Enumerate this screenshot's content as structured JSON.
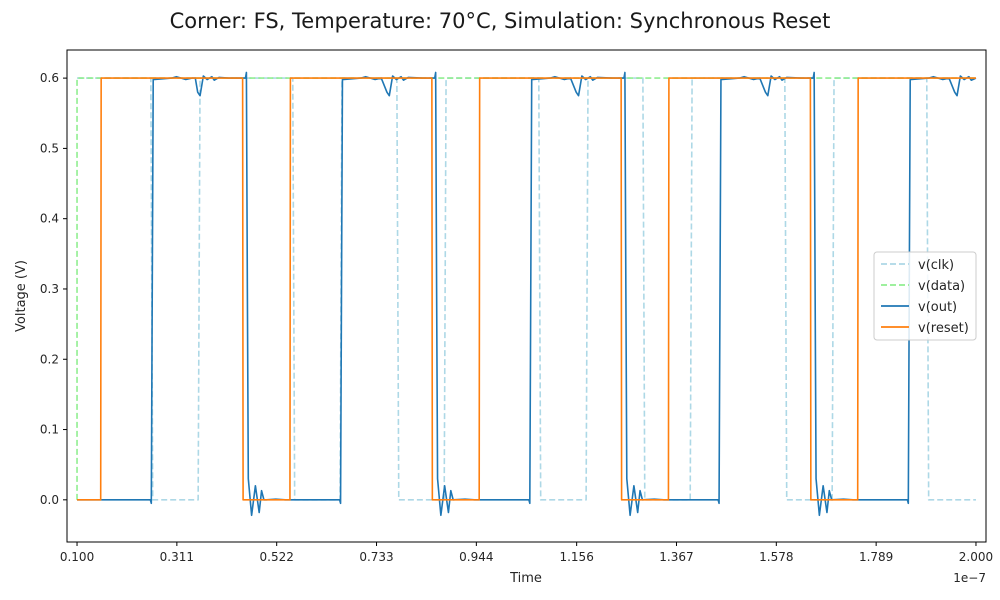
{
  "chart_data": {
    "type": "line",
    "title": "Corner: FS, Temperature: 70°C, Simulation: Synchronous Reset",
    "xlabel": "Time",
    "ylabel": "Voltage (V)",
    "x_offset_label": "1e−7",
    "xlim": [
      0.0788,
      2.0212
    ],
    "ylim": [
      -0.06,
      0.64
    ],
    "x_ticks": [
      0.1,
      0.311,
      0.522,
      0.733,
      0.944,
      1.156,
      1.367,
      1.578,
      1.789,
      2.0
    ],
    "x_tick_labels": [
      "0.100",
      "0.311",
      "0.522",
      "0.733",
      "0.944",
      "1.156",
      "1.367",
      "1.578",
      "1.789",
      "2.000"
    ],
    "y_ticks": [
      0.0,
      0.1,
      0.2,
      0.3,
      0.4,
      0.5,
      0.6
    ],
    "y_tick_labels": [
      "0.0",
      "0.1",
      "0.2",
      "0.3",
      "0.4",
      "0.5",
      "0.6"
    ],
    "grid": false,
    "legend_position": "center-right",
    "series": [
      {
        "name": "v(clk)",
        "color": "#add8e6",
        "dash": true,
        "points": [
          [
            0.1,
            0.6
          ],
          [
            0.256,
            0.6
          ],
          [
            0.26,
            0.0
          ],
          [
            0.356,
            0.0
          ],
          [
            0.36,
            0.6
          ],
          [
            0.556,
            0.6
          ],
          [
            0.56,
            0.0
          ],
          [
            0.656,
            0.0
          ],
          [
            0.66,
            0.6
          ],
          [
            0.776,
            0.6
          ],
          [
            0.78,
            0.0
          ],
          [
            0.876,
            0.0
          ],
          [
            0.88,
            0.6
          ],
          [
            1.076,
            0.6
          ],
          [
            1.08,
            0.0
          ],
          [
            1.176,
            0.0
          ],
          [
            1.18,
            0.6
          ],
          [
            1.296,
            0.6
          ],
          [
            1.3,
            0.0
          ],
          [
            1.396,
            0.0
          ],
          [
            1.4,
            0.6
          ],
          [
            1.596,
            0.6
          ],
          [
            1.6,
            0.0
          ],
          [
            1.696,
            0.0
          ],
          [
            1.7,
            0.6
          ],
          [
            1.896,
            0.6
          ],
          [
            1.9,
            0.0
          ],
          [
            1.996,
            0.0
          ],
          [
            2.0,
            0.0
          ]
        ]
      },
      {
        "name": "v(data)",
        "color": "#90ee90",
        "dash": true,
        "points": [
          [
            0.1,
            0.0
          ],
          [
            0.1,
            0.6
          ],
          [
            2.0,
            0.6
          ]
        ]
      },
      {
        "name": "v(out)",
        "color": "#1f77b4",
        "dash": false,
        "points": [
          [
            0.1,
            0.0
          ],
          [
            0.255,
            0.0
          ],
          [
            0.257,
            -0.005
          ],
          [
            0.259,
            0.3
          ],
          [
            0.261,
            0.598
          ],
          [
            0.3,
            0.6
          ],
          [
            0.31,
            0.602
          ],
          [
            0.33,
            0.598
          ],
          [
            0.343,
            0.6
          ],
          [
            0.35,
            0.6
          ],
          [
            0.355,
            0.58
          ],
          [
            0.36,
            0.575
          ],
          [
            0.367,
            0.603
          ],
          [
            0.375,
            0.598
          ],
          [
            0.385,
            0.602
          ],
          [
            0.39,
            0.597
          ],
          [
            0.4,
            0.601
          ],
          [
            0.42,
            0.6
          ],
          [
            0.45,
            0.6
          ],
          [
            0.456,
            0.6
          ],
          [
            0.458,
            0.608
          ],
          [
            0.46,
            0.3
          ],
          [
            0.462,
            0.03
          ],
          [
            0.469,
            -0.022
          ],
          [
            0.477,
            0.02
          ],
          [
            0.485,
            -0.018
          ],
          [
            0.49,
            0.013
          ],
          [
            0.495,
            0.0
          ],
          [
            0.5,
            0.0
          ],
          [
            0.52,
            0.001
          ],
          [
            0.54,
            0.0
          ],
          [
            0.655,
            0.0
          ],
          [
            0.657,
            -0.005
          ],
          [
            0.659,
            0.3
          ],
          [
            0.661,
            0.598
          ],
          [
            0.7,
            0.6
          ],
          [
            0.71,
            0.602
          ],
          [
            0.73,
            0.598
          ],
          [
            0.743,
            0.6
          ],
          [
            0.755,
            0.58
          ],
          [
            0.76,
            0.575
          ],
          [
            0.767,
            0.603
          ],
          [
            0.775,
            0.598
          ],
          [
            0.785,
            0.602
          ],
          [
            0.79,
            0.597
          ],
          [
            0.8,
            0.601
          ],
          [
            0.83,
            0.6
          ],
          [
            0.856,
            0.6
          ],
          [
            0.858,
            0.608
          ],
          [
            0.86,
            0.3
          ],
          [
            0.862,
            0.03
          ],
          [
            0.869,
            -0.022
          ],
          [
            0.877,
            0.02
          ],
          [
            0.885,
            -0.018
          ],
          [
            0.89,
            0.013
          ],
          [
            0.895,
            0.0
          ],
          [
            0.92,
            0.001
          ],
          [
            0.94,
            0.0
          ],
          [
            1.055,
            0.0
          ],
          [
            1.057,
            -0.005
          ],
          [
            1.059,
            0.3
          ],
          [
            1.061,
            0.598
          ],
          [
            1.1,
            0.6
          ],
          [
            1.11,
            0.602
          ],
          [
            1.13,
            0.598
          ],
          [
            1.143,
            0.6
          ],
          [
            1.155,
            0.58
          ],
          [
            1.16,
            0.575
          ],
          [
            1.167,
            0.603
          ],
          [
            1.175,
            0.598
          ],
          [
            1.185,
            0.602
          ],
          [
            1.19,
            0.597
          ],
          [
            1.2,
            0.601
          ],
          [
            1.23,
            0.6
          ],
          [
            1.256,
            0.6
          ],
          [
            1.258,
            0.608
          ],
          [
            1.26,
            0.3
          ],
          [
            1.262,
            0.03
          ],
          [
            1.269,
            -0.022
          ],
          [
            1.277,
            0.02
          ],
          [
            1.285,
            -0.018
          ],
          [
            1.29,
            0.013
          ],
          [
            1.295,
            0.0
          ],
          [
            1.32,
            0.001
          ],
          [
            1.34,
            0.0
          ],
          [
            1.455,
            0.0
          ],
          [
            1.457,
            -0.005
          ],
          [
            1.459,
            0.3
          ],
          [
            1.461,
            0.598
          ],
          [
            1.5,
            0.6
          ],
          [
            1.51,
            0.602
          ],
          [
            1.53,
            0.598
          ],
          [
            1.543,
            0.6
          ],
          [
            1.555,
            0.58
          ],
          [
            1.56,
            0.575
          ],
          [
            1.567,
            0.603
          ],
          [
            1.575,
            0.598
          ],
          [
            1.585,
            0.602
          ],
          [
            1.59,
            0.597
          ],
          [
            1.6,
            0.601
          ],
          [
            1.63,
            0.6
          ],
          [
            1.656,
            0.6
          ],
          [
            1.658,
            0.608
          ],
          [
            1.66,
            0.3
          ],
          [
            1.662,
            0.03
          ],
          [
            1.669,
            -0.022
          ],
          [
            1.677,
            0.02
          ],
          [
            1.685,
            -0.018
          ],
          [
            1.69,
            0.013
          ],
          [
            1.695,
            0.0
          ],
          [
            1.72,
            0.001
          ],
          [
            1.74,
            0.0
          ],
          [
            1.855,
            0.0
          ],
          [
            1.857,
            -0.005
          ],
          [
            1.859,
            0.3
          ],
          [
            1.861,
            0.598
          ],
          [
            1.9,
            0.6
          ],
          [
            1.91,
            0.602
          ],
          [
            1.93,
            0.598
          ],
          [
            1.943,
            0.6
          ],
          [
            1.955,
            0.58
          ],
          [
            1.96,
            0.575
          ],
          [
            1.967,
            0.603
          ],
          [
            1.975,
            0.598
          ],
          [
            1.985,
            0.602
          ],
          [
            1.99,
            0.597
          ],
          [
            2.0,
            0.6
          ]
        ]
      },
      {
        "name": "v(reset)",
        "color": "#ff7f0e",
        "dash": false,
        "points": [
          [
            0.1,
            0.0
          ],
          [
            0.15,
            0.0
          ],
          [
            0.151,
            0.6
          ],
          [
            0.45,
            0.6
          ],
          [
            0.451,
            0.0
          ],
          [
            0.55,
            0.0
          ],
          [
            0.551,
            0.6
          ],
          [
            0.85,
            0.6
          ],
          [
            0.851,
            0.0
          ],
          [
            0.95,
            0.0
          ],
          [
            0.951,
            0.6
          ],
          [
            1.25,
            0.6
          ],
          [
            1.251,
            0.0
          ],
          [
            1.35,
            0.0
          ],
          [
            1.351,
            0.6
          ],
          [
            1.65,
            0.6
          ],
          [
            1.651,
            0.0
          ],
          [
            1.75,
            0.0
          ],
          [
            1.751,
            0.6
          ],
          [
            2.0,
            0.6
          ]
        ]
      }
    ]
  }
}
